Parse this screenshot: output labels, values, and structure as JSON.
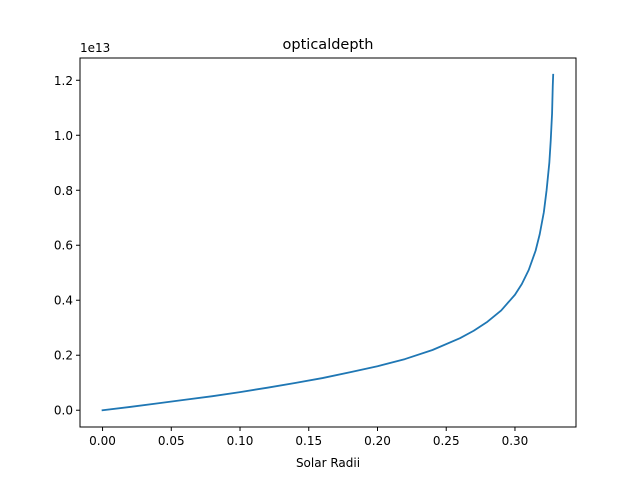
{
  "chart_data": {
    "type": "line",
    "title": "opticaldepth",
    "xlabel": "Solar Radii",
    "ylabel": "",
    "offset_text": "1e13",
    "y_scale_factor": 10000000000000.0,
    "xlim": [
      -0.0164,
      0.3444
    ],
    "ylim": [
      -0.061,
      1.281
    ],
    "xticks": [
      0.0,
      0.05,
      0.1,
      0.15,
      0.2,
      0.25,
      0.3
    ],
    "xtick_labels": [
      "0.00",
      "0.05",
      "0.10",
      "0.15",
      "0.20",
      "0.25",
      "0.30"
    ],
    "yticks": [
      0.0,
      0.2,
      0.4,
      0.6,
      0.8,
      1.0,
      1.2
    ],
    "ytick_labels": [
      "0.0",
      "0.2",
      "0.4",
      "0.6",
      "0.8",
      "1.0",
      "1.2"
    ],
    "series": [
      {
        "color": "#1f77b4",
        "x": [
          0.0,
          0.02,
          0.04,
          0.06,
          0.08,
          0.1,
          0.12,
          0.14,
          0.16,
          0.18,
          0.2,
          0.22,
          0.24,
          0.26,
          0.27,
          0.28,
          0.29,
          0.3,
          0.305,
          0.31,
          0.315,
          0.318,
          0.321,
          0.323,
          0.325,
          0.326,
          0.3265,
          0.327,
          0.3272,
          0.3275,
          0.3278
        ],
        "y": [
          0.0,
          0.012,
          0.025,
          0.038,
          0.051,
          0.066,
          0.082,
          0.099,
          0.117,
          0.138,
          0.16,
          0.186,
          0.219,
          0.262,
          0.289,
          0.322,
          0.363,
          0.42,
          0.459,
          0.51,
          0.58,
          0.64,
          0.72,
          0.8,
          0.9,
          0.98,
          1.03,
          1.08,
          1.12,
          1.18,
          1.22
        ]
      }
    ]
  }
}
